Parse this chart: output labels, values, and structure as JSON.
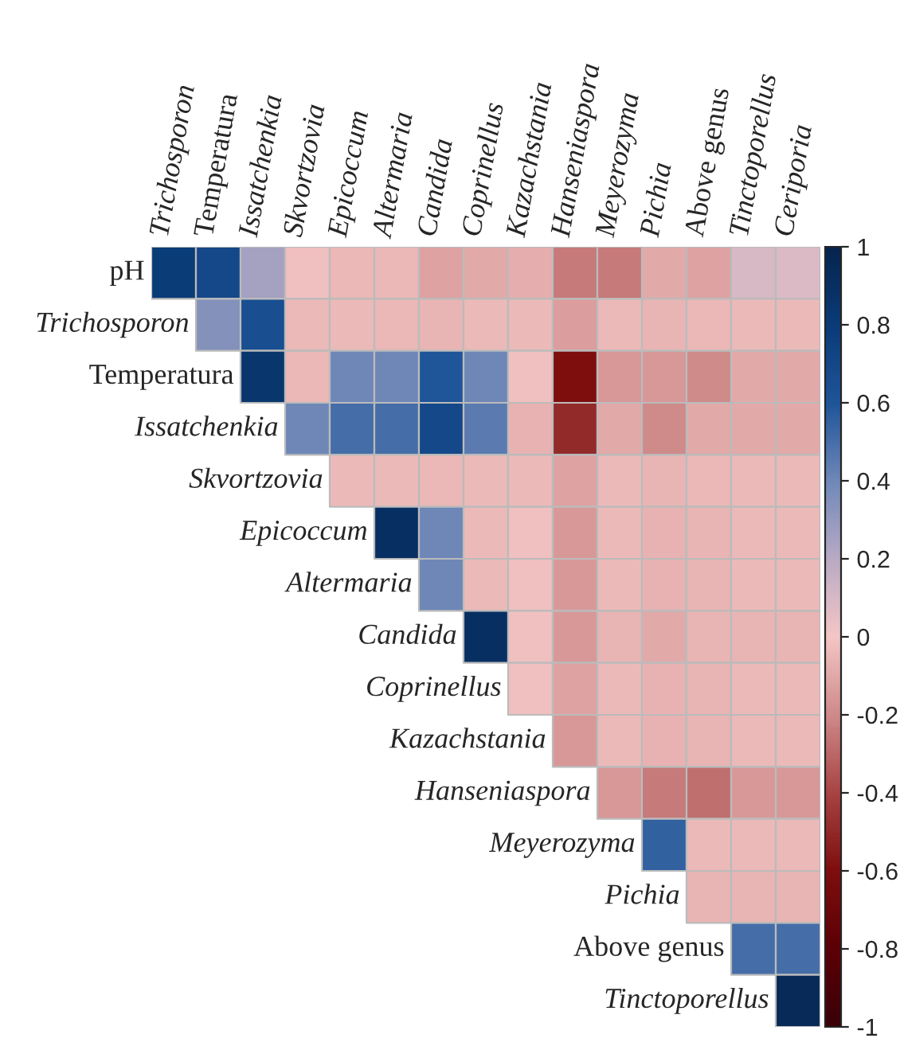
{
  "chart_data": {
    "type": "heatmap",
    "categories": [
      "Trichosporon",
      "Temperatura",
      "Issatchenkia",
      "Skvortzovia",
      "Epicoccum",
      "Altermaria",
      "Candida",
      "Coprinellus",
      "Kazachstania",
      "Hanseniaspora",
      "Meyerozyma",
      "Pichia",
      "Above genus",
      "Tinctoporellus",
      "Ceriporia"
    ],
    "y_categories": [
      "pH",
      "Trichosporon",
      "Temperatura",
      "Issatchenkia",
      "Skvortzovia",
      "Epicoccum",
      "Altermaria",
      "Candida",
      "Coprinellus",
      "Kazachstania",
      "Hanseniaspora",
      "Meyerozyma",
      "Pichia",
      "Above genus",
      "Tinctoporellus"
    ],
    "cells": [
      [
        0.8,
        0.7,
        0.25,
        -0.02,
        -0.05,
        -0.05,
        -0.12,
        -0.1,
        -0.08,
        -0.25,
        -0.25,
        -0.1,
        -0.12,
        0.1,
        0.08
      ],
      [
        null,
        0.35,
        0.65,
        -0.04,
        -0.04,
        -0.05,
        -0.06,
        -0.04,
        -0.04,
        -0.14,
        -0.04,
        -0.06,
        -0.05,
        -0.04,
        -0.04
      ],
      [
        null,
        null,
        0.85,
        -0.05,
        0.4,
        0.4,
        0.6,
        0.4,
        -0.02,
        -0.6,
        -0.15,
        -0.15,
        -0.2,
        -0.1,
        -0.1
      ],
      [
        null,
        null,
        null,
        0.4,
        0.5,
        0.5,
        0.7,
        0.45,
        -0.07,
        -0.5,
        -0.1,
        -0.2,
        -0.1,
        -0.1,
        -0.1
      ],
      [
        null,
        null,
        null,
        null,
        -0.04,
        -0.04,
        -0.05,
        -0.04,
        -0.04,
        -0.12,
        -0.04,
        -0.06,
        -0.05,
        -0.04,
        -0.04
      ],
      [
        null,
        null,
        null,
        null,
        null,
        0.9,
        0.4,
        -0.04,
        -0.02,
        -0.15,
        -0.04,
        -0.07,
        -0.06,
        -0.04,
        -0.04
      ],
      [
        null,
        null,
        null,
        null,
        null,
        null,
        0.4,
        -0.04,
        -0.02,
        -0.15,
        -0.04,
        -0.07,
        -0.06,
        -0.04,
        -0.04
      ],
      [
        null,
        null,
        null,
        null,
        null,
        null,
        null,
        0.9,
        -0.02,
        -0.15,
        -0.06,
        -0.1,
        -0.06,
        -0.06,
        -0.06
      ],
      [
        null,
        null,
        null,
        null,
        null,
        null,
        null,
        null,
        -0.02,
        -0.12,
        -0.04,
        -0.07,
        -0.06,
        -0.04,
        -0.04
      ],
      [
        null,
        null,
        null,
        null,
        null,
        null,
        null,
        null,
        null,
        -0.15,
        -0.04,
        -0.07,
        -0.06,
        -0.04,
        -0.04
      ],
      [
        null,
        null,
        null,
        null,
        null,
        null,
        null,
        null,
        null,
        null,
        -0.15,
        -0.25,
        -0.28,
        -0.15,
        -0.15
      ],
      [
        null,
        null,
        null,
        null,
        null,
        null,
        null,
        null,
        null,
        null,
        null,
        0.55,
        -0.04,
        -0.04,
        -0.04
      ],
      [
        null,
        null,
        null,
        null,
        null,
        null,
        null,
        null,
        null,
        null,
        null,
        null,
        -0.06,
        -0.06,
        -0.06
      ],
      [
        null,
        null,
        null,
        null,
        null,
        null,
        null,
        null,
        null,
        null,
        null,
        null,
        null,
        0.5,
        0.5
      ],
      [
        null,
        null,
        null,
        null,
        null,
        null,
        null,
        null,
        null,
        null,
        null,
        null,
        null,
        null,
        0.95
      ]
    ],
    "clim": [
      -1,
      1
    ],
    "cticks": [
      1,
      0.8,
      0.6,
      0.4,
      0.2,
      0,
      -0.2,
      -0.4,
      -0.6,
      -0.8,
      -1
    ]
  }
}
